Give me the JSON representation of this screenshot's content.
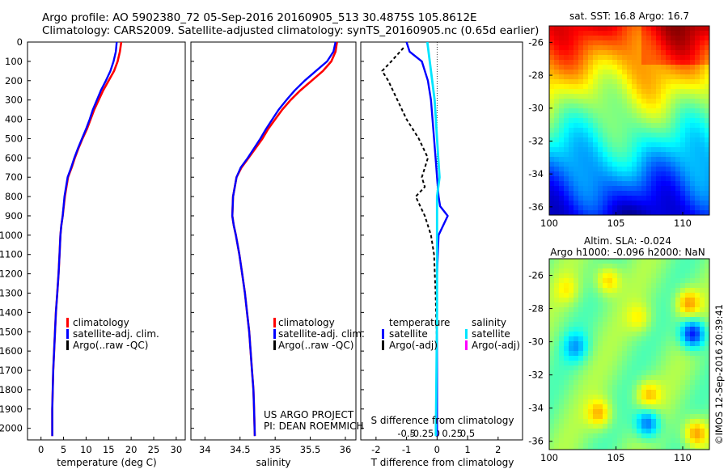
{
  "header": {
    "line1": "Argo profile: AO 5902380_72 05-Sep-2016 20160905_513 30.4875S 105.8612E",
    "line2": "Climatology: CARS2009. Satellite-adjusted climatology: synTS_20160905.nc (0.65d earlier)"
  },
  "credit": {
    "project": "US ARGO PROJECT",
    "pi": "PI: DEAN ROEMMICH",
    "imos": "©IMOS 12-Sep-2016 20:39:41"
  },
  "colors": {
    "climatology": "#ff0000",
    "satellite": "#0000ff",
    "argo": "#000000",
    "satellite_s": "#00e5ff",
    "argo_adj_s": "#ff00ff"
  },
  "chart_data": [
    {
      "id": "temperature",
      "type": "line",
      "xlabel": "temperature (deg C)",
      "ylabel": "",
      "xlim": [
        -3,
        32
      ],
      "ylim": [
        2060,
        0
      ],
      "xticks": [
        "0",
        "5",
        "10",
        "15",
        "20",
        "25",
        "30"
      ],
      "yticks": [
        "0",
        "100",
        "200",
        "300",
        "400",
        "500",
        "600",
        "700",
        "800",
        "900",
        "1000",
        "1100",
        "1200",
        "1300",
        "1400",
        "1500",
        "1600",
        "1700",
        "1800",
        "1900",
        "2000"
      ],
      "legend": [
        "climatology",
        "satellite-adj. clim.",
        "Argo(..raw -QC)"
      ],
      "series": [
        {
          "name": "climatology",
          "x": [
            17.8,
            17.5,
            17.0,
            16.2,
            15.0,
            13.8,
            12.8,
            11.8,
            11.0,
            10.2,
            9.2,
            8.3,
            7.5,
            6.8,
            6.0,
            5.3,
            4.8,
            4.5,
            4.3,
            4.1,
            3.9,
            3.6,
            3.3,
            3.1,
            2.9,
            2.7,
            2.6,
            2.5,
            2.5
          ],
          "y": [
            0,
            50,
            100,
            150,
            200,
            250,
            300,
            350,
            400,
            450,
            500,
            550,
            600,
            650,
            700,
            800,
            900,
            950,
            1000,
            1100,
            1200,
            1300,
            1400,
            1500,
            1600,
            1700,
            1800,
            1900,
            2040
          ]
        },
        {
          "name": "satellite-adj. clim.",
          "x": [
            16.8,
            16.6,
            16.1,
            15.4,
            14.4,
            13.3,
            12.4,
            11.5,
            10.8,
            10.0,
            9.1,
            8.2,
            7.4,
            6.7,
            5.9,
            5.2,
            4.8,
            4.5,
            4.3,
            4.1,
            3.9,
            3.6,
            3.3,
            3.1,
            2.9,
            2.7,
            2.6,
            2.5,
            2.5
          ],
          "y": [
            0,
            50,
            100,
            150,
            200,
            250,
            300,
            350,
            400,
            450,
            500,
            550,
            600,
            650,
            700,
            800,
            900,
            950,
            1000,
            1100,
            1200,
            1300,
            1400,
            1500,
            1600,
            1700,
            1800,
            1900,
            2040
          ]
        }
      ]
    },
    {
      "id": "salinity",
      "type": "line",
      "xlabel": "salinity",
      "ylabel": "",
      "xlim": [
        33.8,
        36.15
      ],
      "ylim": [
        2060,
        0
      ],
      "xticks": [
        "34",
        "34.5",
        "35",
        "35.5",
        "36"
      ],
      "legend": [
        "climatology",
        "satellite-adj. clim.",
        "Argo(..raw -QC)"
      ],
      "series": [
        {
          "name": "climatology",
          "x": [
            35.88,
            35.86,
            35.8,
            35.68,
            35.52,
            35.36,
            35.22,
            35.1,
            35.0,
            34.9,
            34.82,
            34.72,
            34.62,
            34.52,
            34.45,
            34.4,
            34.39,
            34.41,
            34.44,
            34.49,
            34.53,
            34.57,
            34.6,
            34.63,
            34.65,
            34.67,
            34.69,
            34.7,
            34.71
          ],
          "y": [
            0,
            50,
            100,
            150,
            200,
            250,
            300,
            350,
            400,
            450,
            500,
            550,
            600,
            650,
            700,
            800,
            900,
            950,
            1000,
            1100,
            1200,
            1300,
            1400,
            1500,
            1600,
            1700,
            1800,
            1900,
            2040
          ]
        },
        {
          "name": "satellite-adj. clim.",
          "x": [
            35.86,
            35.83,
            35.74,
            35.58,
            35.42,
            35.28,
            35.16,
            35.05,
            34.96,
            34.87,
            34.79,
            34.7,
            34.61,
            34.51,
            34.45,
            34.4,
            34.39,
            34.41,
            34.44,
            34.49,
            34.53,
            34.57,
            34.6,
            34.63,
            34.65,
            34.67,
            34.69,
            34.7,
            34.71
          ],
          "y": [
            0,
            50,
            100,
            150,
            200,
            250,
            300,
            350,
            400,
            450,
            500,
            550,
            600,
            650,
            700,
            800,
            900,
            950,
            1000,
            1100,
            1200,
            1300,
            1400,
            1500,
            1600,
            1700,
            1800,
            1900,
            2040
          ]
        }
      ]
    },
    {
      "id": "difference",
      "type": "line",
      "title": "",
      "xlabel": "T difference from climatology",
      "xlabel2": "S difference from climatology",
      "xlim": [
        -2.5,
        2.8
      ],
      "ylim": [
        2060,
        0
      ],
      "xticks": [
        "-2",
        "-1",
        "0",
        "1",
        "2"
      ],
      "xticks2": [
        "-0.5",
        "-0.25",
        "0",
        "0.25",
        "0.5"
      ],
      "legend_headers": [
        "temperature",
        "salinity"
      ],
      "legend": [
        "satellite",
        "Argo(-adj)",
        "satellite",
        "Argo(-adj)"
      ],
      "series": [
        {
          "name": "T satellite",
          "x": [
            -1.0,
            -0.9,
            -0.5,
            -0.3,
            -0.2,
            -0.15,
            -0.1,
            -0.05,
            0.0,
            0.05,
            0.1,
            0.35,
            0.05,
            0.0,
            0.0,
            0.0
          ],
          "y": [
            0,
            50,
            100,
            200,
            300,
            400,
            500,
            600,
            700,
            800,
            850,
            900,
            1000,
            1200,
            1600,
            2040
          ]
        },
        {
          "name": "T Argo(-adj)",
          "x": [
            -1.1,
            -1.5,
            -1.8,
            -1.6,
            -1.3,
            -1.0,
            -0.6,
            -0.3,
            -0.5,
            -0.4,
            -0.7,
            -0.4,
            -0.2,
            -0.1,
            -0.05,
            0.0,
            0.0
          ],
          "y": [
            30,
            100,
            150,
            200,
            300,
            400,
            500,
            600,
            700,
            750,
            800,
            900,
            1000,
            1100,
            1300,
            1600,
            2040
          ]
        },
        {
          "name": "S satellite",
          "x": [
            -0.08,
            -0.06,
            -0.04,
            -0.02,
            -0.01,
            0.0,
            0.01,
            0.02,
            0.0,
            0.0,
            0.0,
            -0.01
          ],
          "y": [
            0,
            100,
            200,
            300,
            400,
            500,
            600,
            700,
            800,
            1000,
            1400,
            2040
          ]
        }
      ]
    },
    {
      "id": "sst-map",
      "type": "heatmap",
      "title": "sat. SST: 16.8 Argo: 16.7",
      "xticks": [
        "100",
        "105",
        "110"
      ],
      "yticks": [
        "-26",
        "-28",
        "-30",
        "-32",
        "-34",
        "-36"
      ],
      "xlim": [
        100,
        112
      ],
      "ylim": [
        -36.5,
        -25
      ]
    },
    {
      "id": "sla-map",
      "type": "heatmap",
      "title": "Altim. SLA: -0.024",
      "subtitle": "Argo h1000: -0.096 h2000: NaN",
      "xticks": [
        "100",
        "105",
        "110"
      ],
      "yticks": [
        "-26",
        "-28",
        "-30",
        "-32",
        "-34",
        "-36"
      ],
      "xlim": [
        100,
        112
      ],
      "ylim": [
        -36.5,
        -25
      ]
    }
  ]
}
